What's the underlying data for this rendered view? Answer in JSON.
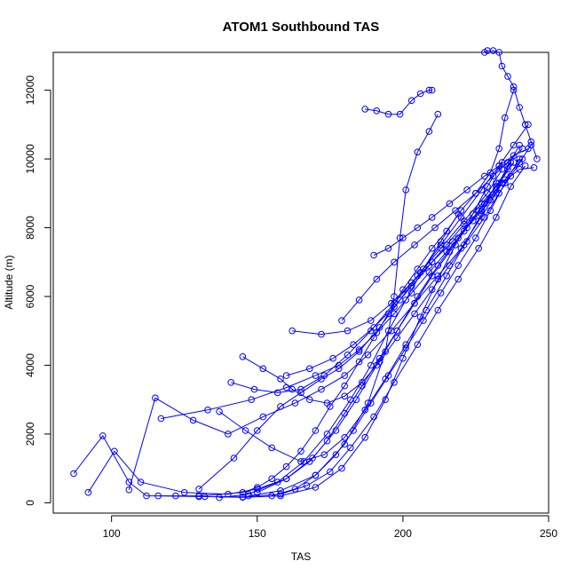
{
  "chart_data": {
    "type": "scatter",
    "title": "ATOM1 Southbound TAS",
    "xlabel": "TAS",
    "ylabel": "Altitude (m)",
    "xlim": [
      80,
      250
    ],
    "ylim": [
      -300,
      13100
    ],
    "x_ticks": [
      100,
      150,
      200,
      250
    ],
    "y_ticks": [
      0,
      2000,
      4000,
      6000,
      8000,
      10000,
      12000
    ],
    "x_tick_labels": [
      "100",
      "150",
      "200",
      "250"
    ],
    "y_tick_labels": [
      "0",
      "2000",
      "4000",
      "6000",
      "8000",
      "10000",
      "12000"
    ],
    "grid": false,
    "legend": "none",
    "marker": "open-circle",
    "line": "connected",
    "color": "#0000ff",
    "series": [
      {
        "x": [
          87,
          97,
          106,
          112,
          122,
          130,
          145,
          150,
          155,
          160,
          165,
          170,
          175,
          180,
          185,
          190,
          195,
          200,
          205,
          210,
          215,
          220,
          225,
          230,
          233,
          235,
          238
        ],
        "y": [
          850,
          1950,
          600,
          200,
          200,
          200,
          300,
          450,
          700,
          1050,
          1500,
          2100,
          2800,
          3400,
          4100,
          4800,
          5500,
          6200,
          6800,
          7400,
          7900,
          8500,
          9000,
          9600,
          10300,
          11200,
          12000
        ]
      },
      {
        "x": [
          92,
          101,
          110,
          125,
          140,
          150,
          160,
          168,
          174,
          180,
          186,
          192,
          198,
          204,
          210,
          216,
          222,
          228,
          234,
          240,
          245
        ],
        "y": [
          300,
          1500,
          600,
          300,
          250,
          400,
          700,
          1200,
          1800,
          2600,
          3400,
          4200,
          5000,
          5800,
          6600,
          7300,
          8000,
          8700,
          9300,
          9700,
          9750
        ]
      },
      {
        "x": [
          106,
          115,
          128,
          140,
          152,
          163,
          172,
          180,
          188,
          196,
          204,
          212,
          220,
          226,
          232,
          236,
          240
        ],
        "y": [
          380,
          3050,
          2400,
          2000,
          2500,
          2900,
          3300,
          3700,
          4300,
          5000,
          5800,
          6600,
          7400,
          8200,
          9000,
          9800,
          10400
        ]
      },
      {
        "x": [
          116,
          130,
          145,
          158,
          167,
          175,
          182,
          190,
          197,
          205,
          212,
          219,
          226,
          232,
          237,
          242
        ],
        "y": [
          200,
          180,
          170,
          250,
          500,
          900,
          1600,
          2500,
          3500,
          4600,
          5600,
          6500,
          7400,
          8300,
          9200,
          9800
        ]
      },
      {
        "x": [
          130,
          142,
          150,
          158,
          165,
          172,
          178,
          185,
          192,
          199,
          206,
          213,
          220,
          227,
          233,
          238,
          243
        ],
        "y": [
          400,
          1300,
          2100,
          2800,
          3200,
          3600,
          3900,
          4400,
          5100,
          5900,
          6700,
          7500,
          8300,
          9100,
          9800,
          10400,
          11000
        ]
      },
      {
        "x": [
          117,
          133,
          148,
          160,
          170,
          178,
          185,
          191,
          197,
          203,
          209,
          215,
          221,
          227,
          232,
          236
        ],
        "y": [
          2450,
          2700,
          3000,
          3350,
          3700,
          4000,
          4450,
          4950,
          5500,
          6100,
          6700,
          7300,
          7900,
          8500,
          9100,
          9700
        ]
      },
      {
        "x": [
          145,
          152,
          158,
          162,
          168,
          174,
          180,
          186,
          192,
          198,
          204,
          210,
          216,
          222,
          228,
          233,
          237,
          241
        ],
        "y": [
          4250,
          3900,
          3600,
          3300,
          3000,
          2900,
          3100,
          3500,
          4100,
          4800,
          5500,
          6200,
          6900,
          7600,
          8300,
          9000,
          9500,
          10000
        ]
      },
      {
        "x": [
          137,
          146,
          155,
          165,
          173,
          180,
          187,
          194,
          201,
          208,
          215,
          221,
          227,
          232
        ],
        "y": [
          2650,
          2100,
          1600,
          1200,
          1400,
          1900,
          2700,
          3600,
          4600,
          5600,
          6600,
          7500,
          8400,
          9300
        ]
      },
      {
        "x": [
          187,
          191,
          195,
          199,
          203,
          206,
          209,
          210
        ],
        "y": [
          11450,
          11400,
          11300,
          11300,
          11700,
          11900,
          12000,
          12000
        ]
      },
      {
        "x": [
          147,
          158,
          170,
          180,
          188,
          194,
          197,
          199,
          201,
          205,
          209,
          212
        ],
        "y": [
          200,
          350,
          800,
          1700,
          2900,
          4400,
          6000,
          7700,
          9100,
          10200,
          10800,
          11300
        ]
      },
      {
        "x": [
          162,
          172,
          181,
          189,
          196,
          203,
          210,
          217,
          224,
          230,
          235,
          240,
          244
        ],
        "y": [
          5000,
          4900,
          5000,
          5300,
          5800,
          6400,
          7000,
          7600,
          8200,
          8800,
          9400,
          9900,
          10400
        ]
      },
      {
        "x": [
          150,
          160,
          169,
          177,
          184,
          191,
          198,
          205,
          212,
          219,
          226,
          232,
          237
        ],
        "y": [
          300,
          700,
          1300,
          2100,
          3000,
          4000,
          5000,
          6000,
          6900,
          7700,
          8500,
          9200,
          9900
        ]
      },
      {
        "x": [
          141,
          149,
          157,
          165,
          173,
          181,
          189,
          197,
          205,
          213,
          221,
          229,
          234
        ],
        "y": [
          3500,
          3300,
          3200,
          3300,
          3700,
          4300,
          5000,
          5800,
          6600,
          7400,
          8200,
          9000,
          9700
        ]
      },
      {
        "x": [
          155,
          163,
          170,
          177,
          183,
          189,
          195,
          201,
          207,
          213,
          219,
          225,
          230,
          235,
          240
        ],
        "y": [
          200,
          400,
          800,
          1400,
          2100,
          2900,
          3700,
          4500,
          5300,
          6100,
          6900,
          7700,
          8500,
          9300,
          10000
        ]
      },
      {
        "x": [
          228,
          229,
          231,
          233,
          234,
          236,
          238,
          240,
          242,
          244,
          246
        ],
        "y": [
          13100,
          13150,
          13150,
          13100,
          12700,
          12400,
          12100,
          11500,
          11000,
          10500,
          10000
        ]
      },
      {
        "x": [
          132,
          145,
          158,
          170,
          179,
          187,
          194,
          200,
          206,
          212,
          218,
          224,
          229,
          234
        ],
        "y": [
          180,
          160,
          200,
          450,
          1000,
          1900,
          3000,
          4200,
          5400,
          6500,
          7500,
          8400,
          9200,
          9900
        ]
      },
      {
        "x": [
          160,
          168,
          176,
          183,
          190,
          197,
          203,
          209,
          215,
          221,
          227,
          233,
          238
        ],
        "y": [
          3700,
          3900,
          4200,
          4600,
          5100,
          5700,
          6300,
          6900,
          7500,
          8100,
          8700,
          9300,
          9900
        ]
      },
      {
        "x": [
          190,
          195,
          200,
          205,
          210,
          216,
          222,
          228,
          233,
          238,
          243
        ],
        "y": [
          7200,
          7400,
          7700,
          8000,
          8300,
          8700,
          9100,
          9500,
          9800,
          10100,
          10300
        ]
      },
      {
        "x": [
          179,
          185,
          191,
          197,
          204,
          211,
          218,
          225,
          231,
          236,
          241
        ],
        "y": [
          5300,
          5900,
          6500,
          7000,
          7500,
          8000,
          8500,
          9000,
          9500,
          9900,
          10300
        ]
      },
      {
        "x": [
          137,
          147,
          157,
          166,
          174,
          182,
          189,
          195,
          201,
          207,
          213,
          219
        ],
        "y": [
          150,
          250,
          600,
          1200,
          2000,
          3000,
          4000,
          5000,
          5900,
          6800,
          7600,
          8400
        ]
      }
    ]
  }
}
